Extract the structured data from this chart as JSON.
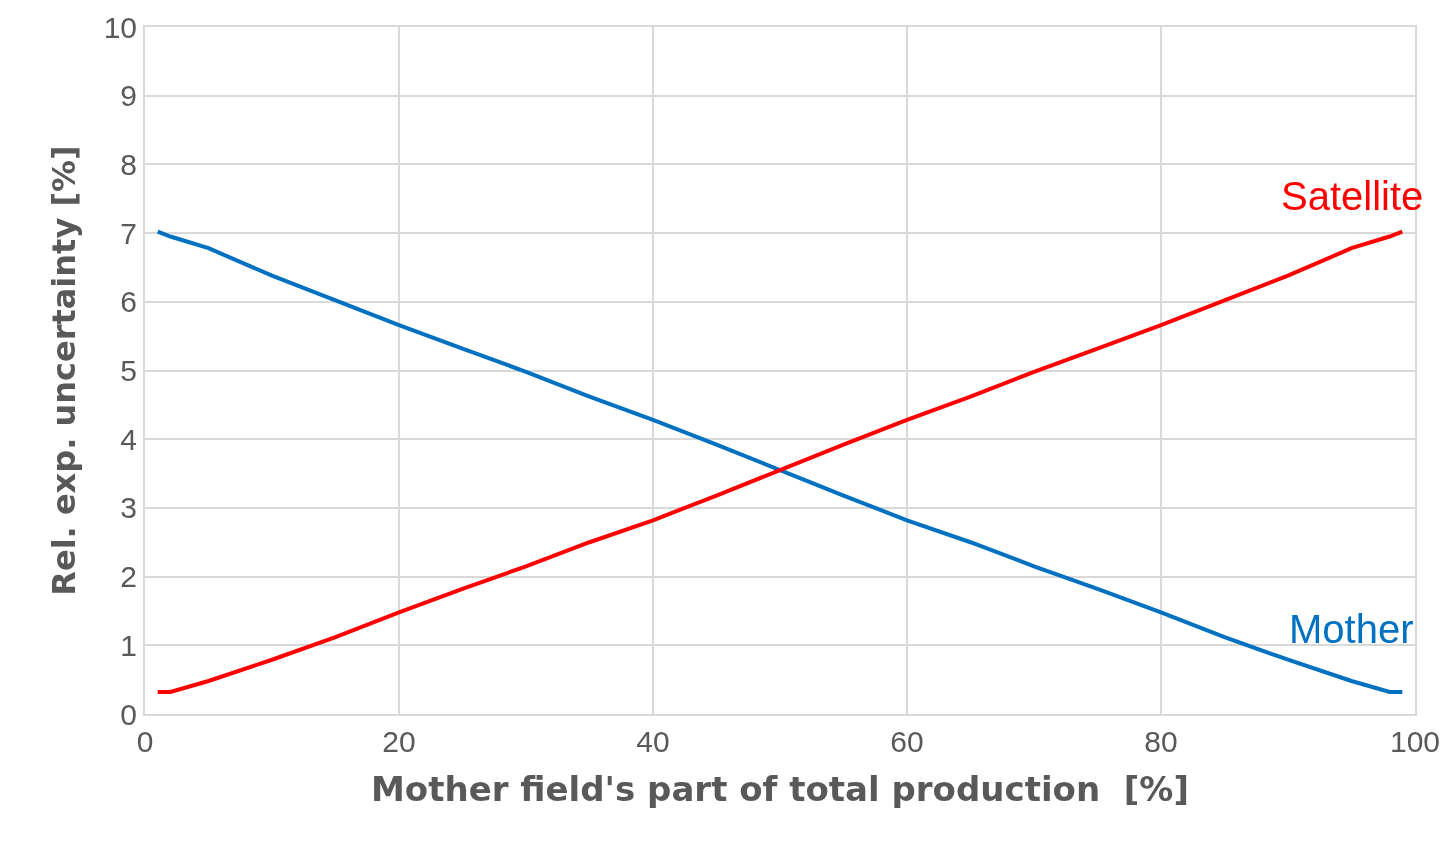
{
  "chart_data": {
    "type": "line",
    "xlabel": "Mother field's part of total production  [%]",
    "ylabel": "Rel. exp. uncertainty [%]",
    "xlim": [
      0,
      100
    ],
    "xticks": [
      0,
      20,
      40,
      60,
      80,
      100
    ],
    "ylim": [
      0,
      10
    ],
    "yticks": [
      0,
      1,
      2,
      3,
      4,
      5,
      6,
      7,
      8,
      9,
      10
    ],
    "grid": true,
    "legend": false,
    "marker": "none",
    "line_style": "solid",
    "x": [
      1,
      2,
      5,
      10,
      15,
      20,
      25,
      30,
      35,
      40,
      45,
      50,
      55,
      60,
      65,
      70,
      75,
      80,
      85,
      90,
      95,
      98,
      99
    ],
    "series": [
      {
        "name": "Mother",
        "color": "#0070c0",
        "values": [
          7.02,
          6.95,
          6.78,
          6.38,
          6.02,
          5.66,
          5.32,
          4.98,
          4.62,
          4.28,
          3.92,
          3.55,
          3.18,
          2.82,
          2.5,
          2.15,
          1.82,
          1.48,
          1.12,
          0.79,
          0.48,
          0.32,
          0.32
        ]
      },
      {
        "name": "Satellite",
        "color": "#ff0000",
        "values": [
          0.32,
          0.32,
          0.48,
          0.79,
          1.12,
          1.48,
          1.82,
          2.15,
          2.5,
          2.82,
          3.18,
          3.55,
          3.92,
          4.28,
          4.62,
          4.98,
          5.32,
          5.66,
          6.02,
          6.38,
          6.78,
          6.95,
          7.02
        ]
      }
    ]
  }
}
